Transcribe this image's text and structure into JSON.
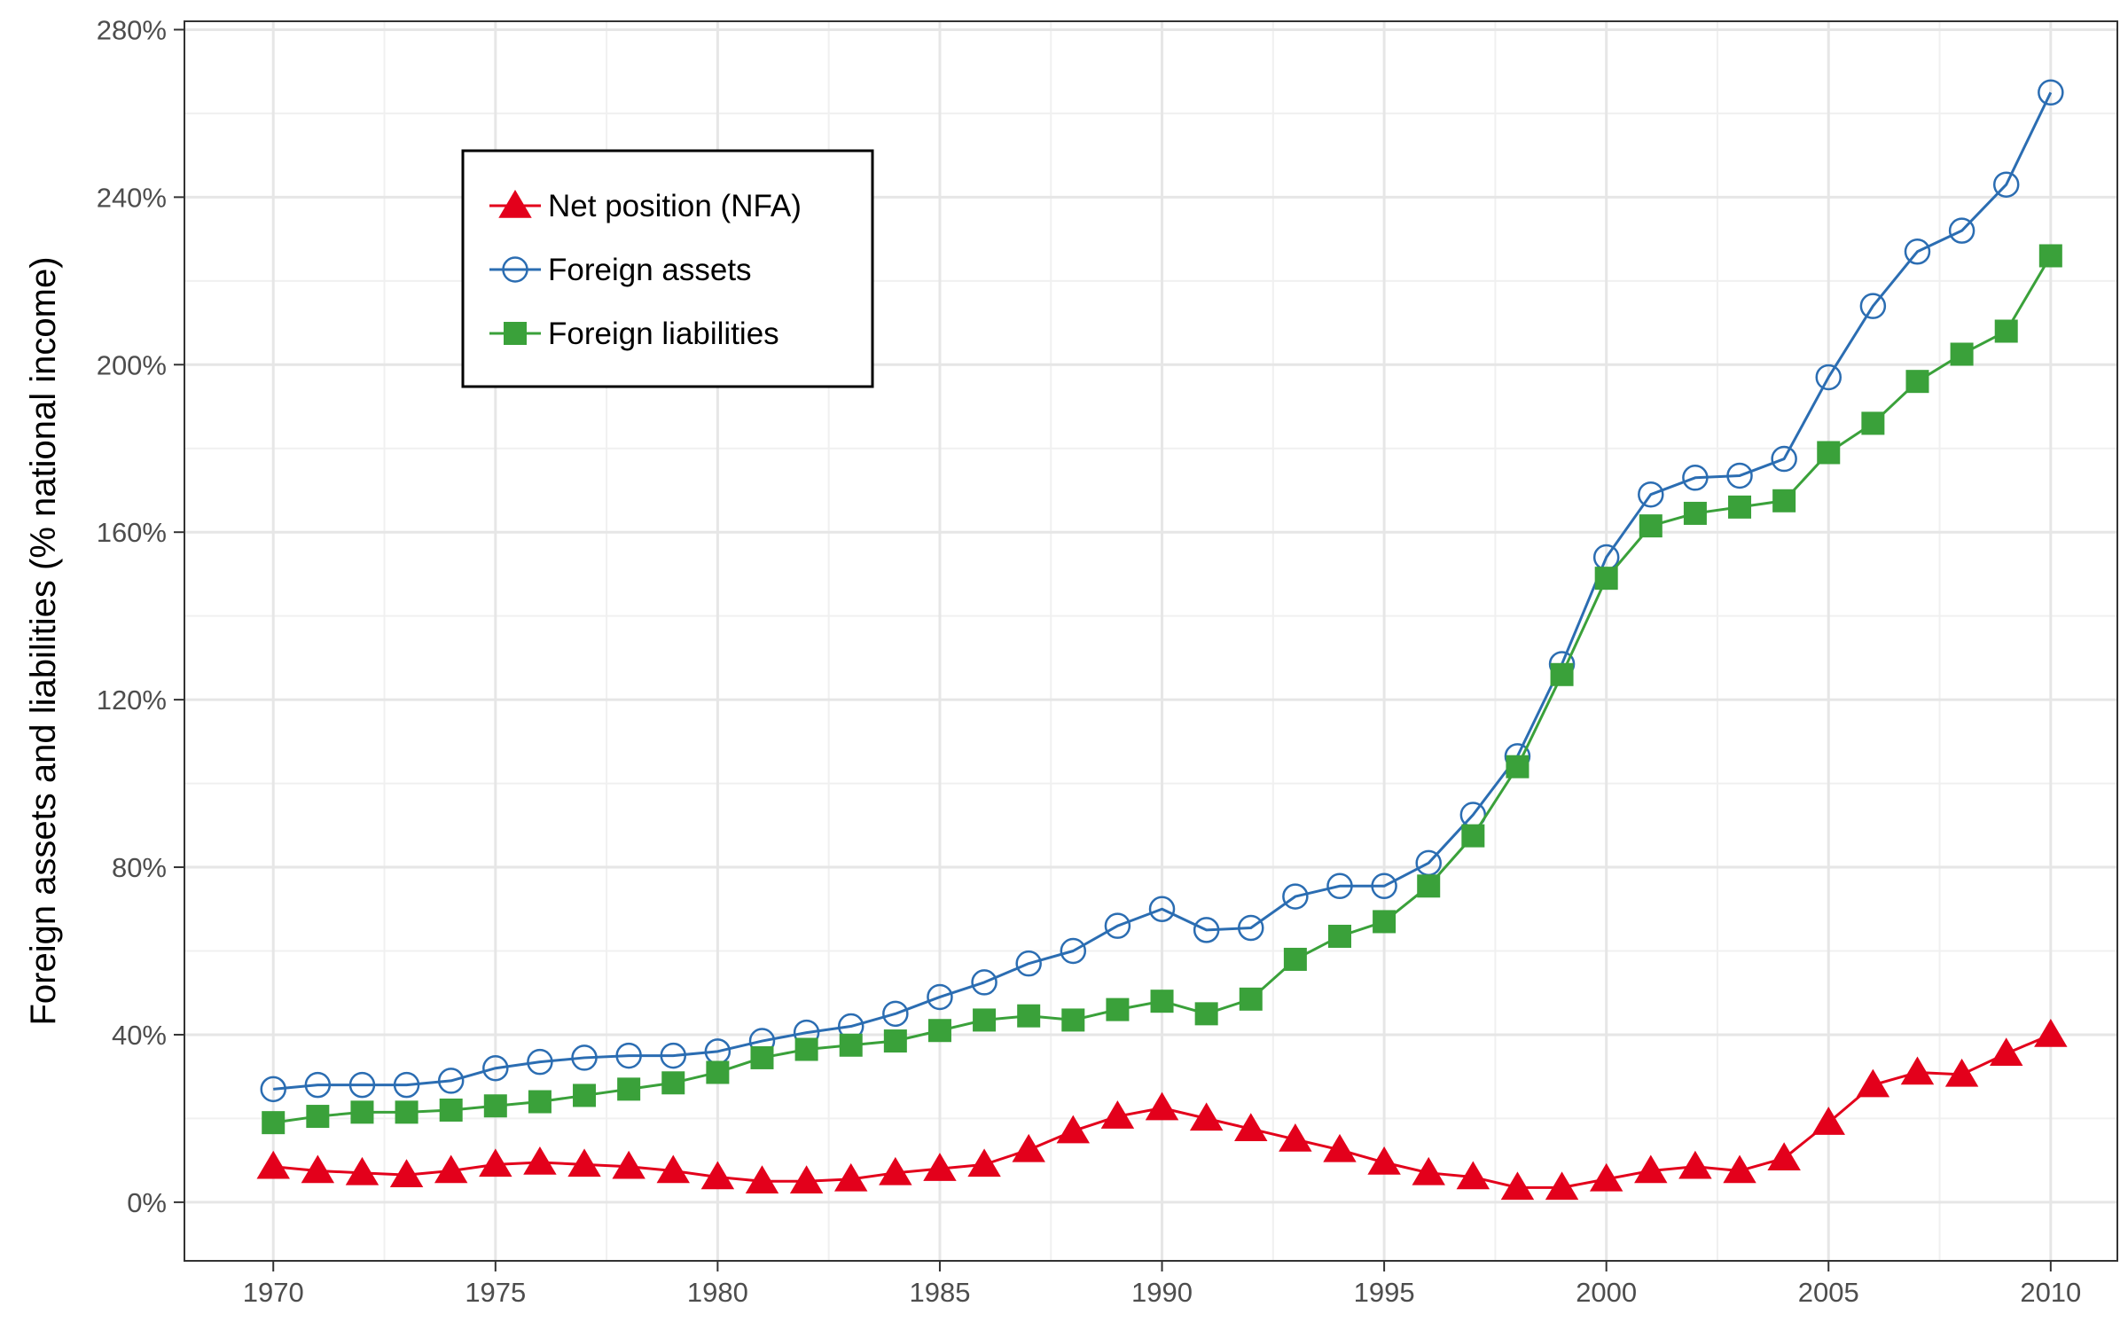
{
  "chart_data": {
    "type": "line",
    "title": "",
    "xlabel": "",
    "ylabel": "Foreign assets and liabilities (% national income)",
    "xlim": [
      1968,
      2011.5
    ],
    "ylim": [
      -14,
      282
    ],
    "x_ticks": [
      1970,
      1975,
      1980,
      1985,
      1990,
      1995,
      2000,
      2005,
      2010
    ],
    "x_tick_labels": [
      "1970",
      "1975",
      "1980",
      "1985",
      "1990",
      "1995",
      "2000",
      "2005",
      "2010"
    ],
    "y_ticks": [
      0,
      40,
      80,
      120,
      160,
      200,
      240,
      280
    ],
    "y_tick_labels": [
      "0%",
      "40%",
      "80%",
      "120%",
      "160%",
      "200%",
      "240%",
      "280%"
    ],
    "grid": true,
    "legend_position": "top-left inside",
    "x": [
      1970,
      1971,
      1972,
      1973,
      1974,
      1975,
      1976,
      1977,
      1978,
      1979,
      1980,
      1981,
      1982,
      1983,
      1984,
      1985,
      1986,
      1987,
      1988,
      1989,
      1990,
      1991,
      1992,
      1993,
      1994,
      1995,
      1996,
      1997,
      1998,
      1999,
      2000,
      2001,
      2002,
      2003,
      2004,
      2005,
      2006,
      2007,
      2008,
      2009,
      2010
    ],
    "series": [
      {
        "name": "Net position (NFA)",
        "color": "#e3001b",
        "marker": "filled-triangle",
        "values": [
          8.5,
          7.5,
          7,
          6.5,
          7.5,
          9,
          9.5,
          9,
          8.5,
          7.5,
          6,
          5,
          5,
          5.5,
          7,
          8,
          9,
          12.5,
          17,
          20.5,
          22.5,
          20,
          17.5,
          15,
          12.5,
          9.5,
          7,
          6,
          3.5,
          3.5,
          5.5,
          7.5,
          8.5,
          7.5,
          10.5,
          19,
          28,
          31,
          30.5,
          35.5,
          40
        ]
      },
      {
        "name": "Foreign assets",
        "color": "#2b6db2",
        "marker": "open-circle",
        "values": [
          27,
          28,
          28,
          28,
          29,
          32,
          33.5,
          34.5,
          35,
          35,
          36,
          38.5,
          40.5,
          42,
          45,
          49,
          52.5,
          57,
          60,
          66,
          70,
          65,
          65.5,
          73,
          75.5,
          75.5,
          81,
          92.5,
          106.5,
          128.5,
          154,
          169,
          173,
          173.5,
          177.5,
          197,
          214,
          227,
          232,
          243,
          265
        ]
      },
      {
        "name": "Foreign liabilities",
        "color": "#3aa13a",
        "marker": "filled-square",
        "values": [
          19,
          20.5,
          21.5,
          21.5,
          22,
          23,
          24,
          25.5,
          27,
          28.5,
          31,
          34.5,
          36.5,
          37.5,
          38.5,
          41,
          43.5,
          44.5,
          43.5,
          46,
          48,
          45,
          48.5,
          58,
          63.5,
          67,
          75.5,
          87.5,
          104,
          126,
          149,
          161.5,
          164.5,
          166,
          167.5,
          179,
          186,
          196,
          202.5,
          208,
          226
        ]
      }
    ]
  }
}
